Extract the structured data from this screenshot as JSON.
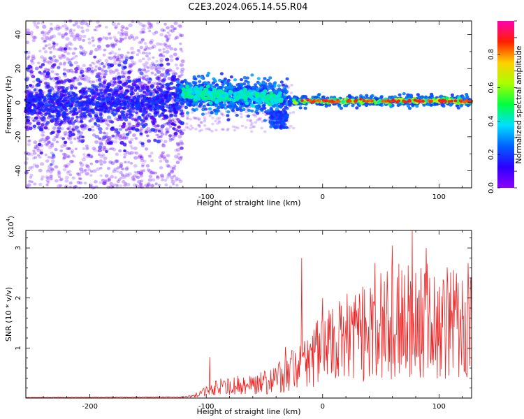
{
  "title": "C2E3.2024.065.14.55.R04",
  "chart_data": [
    {
      "type": "heatmap",
      "xlabel": "Height of straight line (km)",
      "ylabel": "Frequency (Hz)",
      "xlim": [
        -255,
        128
      ],
      "ylim": [
        -50,
        48
      ],
      "xticks": [
        -200,
        -100,
        0,
        100
      ],
      "yticks": [
        -40,
        -20,
        0,
        20,
        40
      ],
      "grid": false,
      "colorbar": {
        "label": "Normalized spectral amplitude",
        "range": [
          0.0,
          1.0
        ],
        "ticks": [
          0.0,
          0.2,
          0.4,
          0.6,
          0.8
        ],
        "colormap": [
          "#8c00ff",
          "#2b00ff",
          "#0060ff",
          "#00e0ff",
          "#00ff40",
          "#a8ff00",
          "#ffd000",
          "#ff2000",
          "#ff00b0"
        ]
      },
      "regions": [
        {
          "x": [
            -255,
            -120
          ],
          "center_hz": 0,
          "core_spread_hz": 10,
          "outlier_spread_hz": 48,
          "amplitude": [
            0.0,
            0.25
          ]
        },
        {
          "x": [
            -120,
            -30
          ],
          "center_hz": 5,
          "core_spread_hz": 4,
          "amplitude": [
            0.2,
            0.45
          ]
        },
        {
          "x": [
            -30,
            128
          ],
          "center_hz": 0.5,
          "core_spread_hz": 1.2,
          "amplitude": [
            0.3,
            1.0
          ]
        }
      ]
    },
    {
      "type": "line",
      "xlabel": "Height of straight line (km)",
      "ylabel": "SNR (10 * v/v)",
      "scale_label": "(x10",
      "scale_exp": "4",
      "scale_close": ")",
      "xlim": [
        -255,
        128
      ],
      "ylim": [
        0,
        3.35
      ],
      "xticks": [
        -200,
        -100,
        0,
        100
      ],
      "yticks": [
        1,
        2,
        3
      ],
      "color": "#ee2222",
      "envelope": [
        {
          "x": -255,
          "y": 0.01
        },
        {
          "x": -120,
          "y": 0.02
        },
        {
          "x": -110,
          "y": 0.08
        },
        {
          "x": -90,
          "y": 0.35
        },
        {
          "x": -60,
          "y": 0.45
        },
        {
          "x": -40,
          "y": 0.6
        },
        {
          "x": -25,
          "y": 0.9
        },
        {
          "x": -15,
          "y": 1.2
        },
        {
          "x": -5,
          "y": 1.5
        },
        {
          "x": 10,
          "y": 1.7
        },
        {
          "x": 20,
          "y": 1.9
        },
        {
          "x": 40,
          "y": 2.2
        },
        {
          "x": 60,
          "y": 2.4
        },
        {
          "x": 75,
          "y": 2.6
        },
        {
          "x": 100,
          "y": 2.4
        },
        {
          "x": 128,
          "y": 2.3
        }
      ],
      "peaks": [
        {
          "x": -97,
          "y": 0.82
        },
        {
          "x": -32,
          "y": 1.02
        },
        {
          "x": -18,
          "y": 2.8
        },
        {
          "x": 0,
          "y": 2.0
        },
        {
          "x": 45,
          "y": 2.7
        },
        {
          "x": 60,
          "y": 3.05
        },
        {
          "x": 77,
          "y": 3.35
        },
        {
          "x": 89,
          "y": 3.0
        },
        {
          "x": 125,
          "y": 2.7
        }
      ]
    }
  ]
}
